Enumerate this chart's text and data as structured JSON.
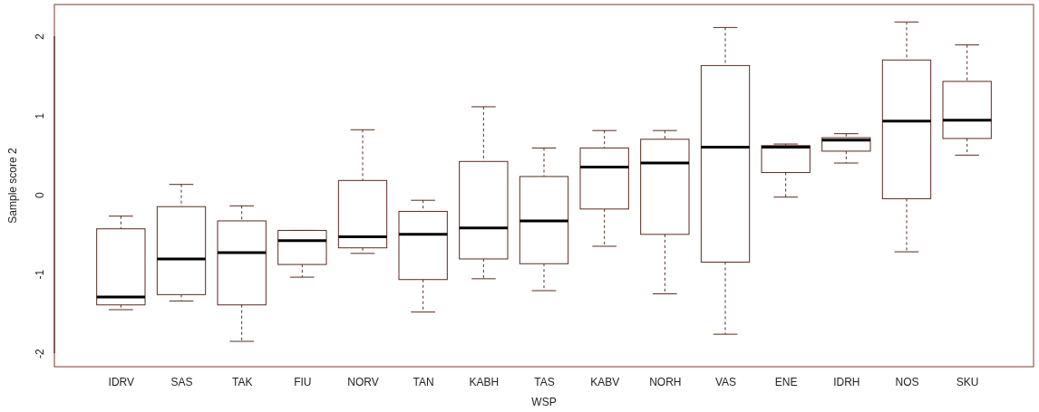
{
  "chart_data": {
    "type": "box",
    "xlabel": "WSP",
    "ylabel": "Sample score 2",
    "categories": [
      "IDRV",
      "SAS",
      "TAK",
      "FIU",
      "NORV",
      "TAN",
      "KABH",
      "TAS",
      "KABV",
      "NORH",
      "VAS",
      "ENE",
      "IDRH",
      "NOS",
      "SKU"
    ],
    "ylim": [
      -2.17,
      2.4
    ],
    "yticks": [
      -2,
      -1,
      0,
      1,
      2
    ],
    "grid": false,
    "color": "#5b2a1e",
    "boxes": [
      {
        "low": -1.45,
        "q1": -1.39,
        "median": -1.29,
        "q3": -0.43,
        "high": -0.27
      },
      {
        "low": -1.34,
        "q1": -1.26,
        "median": -0.81,
        "q3": -0.15,
        "high": 0.13
      },
      {
        "low": -1.85,
        "q1": -1.39,
        "median": -0.73,
        "q3": -0.33,
        "high": -0.14
      },
      {
        "low": -1.04,
        "q1": -0.88,
        "median": -0.58,
        "q3": -0.45,
        "high": -0.45
      },
      {
        "low": -0.74,
        "q1": -0.67,
        "median": -0.53,
        "q3": 0.18,
        "high": 0.82
      },
      {
        "low": -1.48,
        "q1": -1.07,
        "median": -0.5,
        "q3": -0.21,
        "high": -0.07
      },
      {
        "low": -1.06,
        "q1": -0.81,
        "median": -0.42,
        "q3": 0.42,
        "high": 1.11
      },
      {
        "low": -1.21,
        "q1": -0.87,
        "median": -0.33,
        "q3": 0.23,
        "high": 0.59
      },
      {
        "low": -0.65,
        "q1": -0.18,
        "median": 0.35,
        "q3": 0.59,
        "high": 0.81
      },
      {
        "low": -1.25,
        "q1": -0.5,
        "median": 0.4,
        "q3": 0.7,
        "high": 0.81
      },
      {
        "low": -1.76,
        "q1": -0.85,
        "median": 0.6,
        "q3": 1.63,
        "high": 2.11
      },
      {
        "low": -0.03,
        "q1": 0.28,
        "median": 0.6,
        "q3": 0.62,
        "high": 0.64
      },
      {
        "low": 0.4,
        "q1": 0.55,
        "median": 0.69,
        "q3": 0.72,
        "high": 0.77
      },
      {
        "low": -0.72,
        "q1": -0.05,
        "median": 0.93,
        "q3": 1.7,
        "high": 2.18
      },
      {
        "low": 0.5,
        "q1": 0.71,
        "median": 0.94,
        "q3": 1.43,
        "high": 1.89
      }
    ]
  }
}
